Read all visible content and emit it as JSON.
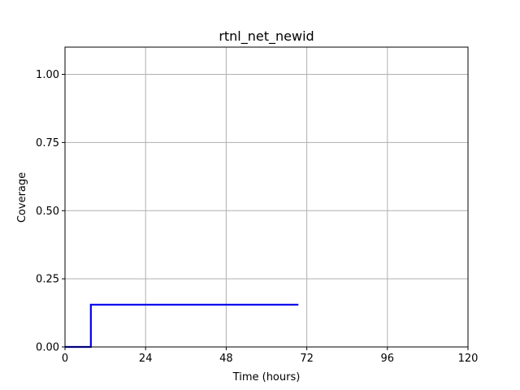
{
  "chart_data": {
    "type": "line",
    "title": "rtnl_net_newid",
    "xlabel": "Time (hours)",
    "ylabel": "Coverage",
    "xlim": [
      0,
      120
    ],
    "ylim": [
      0,
      1.1
    ],
    "xticks": [
      0,
      24,
      48,
      72,
      96,
      120
    ],
    "xtick_labels": [
      "0",
      "24",
      "48",
      "72",
      "96",
      "120"
    ],
    "yticks": [
      0,
      0.25,
      0.5,
      0.75,
      1.0
    ],
    "ytick_labels": [
      "0.00",
      "0.25",
      "0.50",
      "0.75",
      "1.00"
    ],
    "grid": true,
    "series": [
      {
        "color": "#0000ee",
        "step": true,
        "x": [
          0,
          7.7,
          7.7,
          69.5
        ],
        "y": [
          0,
          0,
          0.155,
          0.155
        ]
      }
    ]
  }
}
